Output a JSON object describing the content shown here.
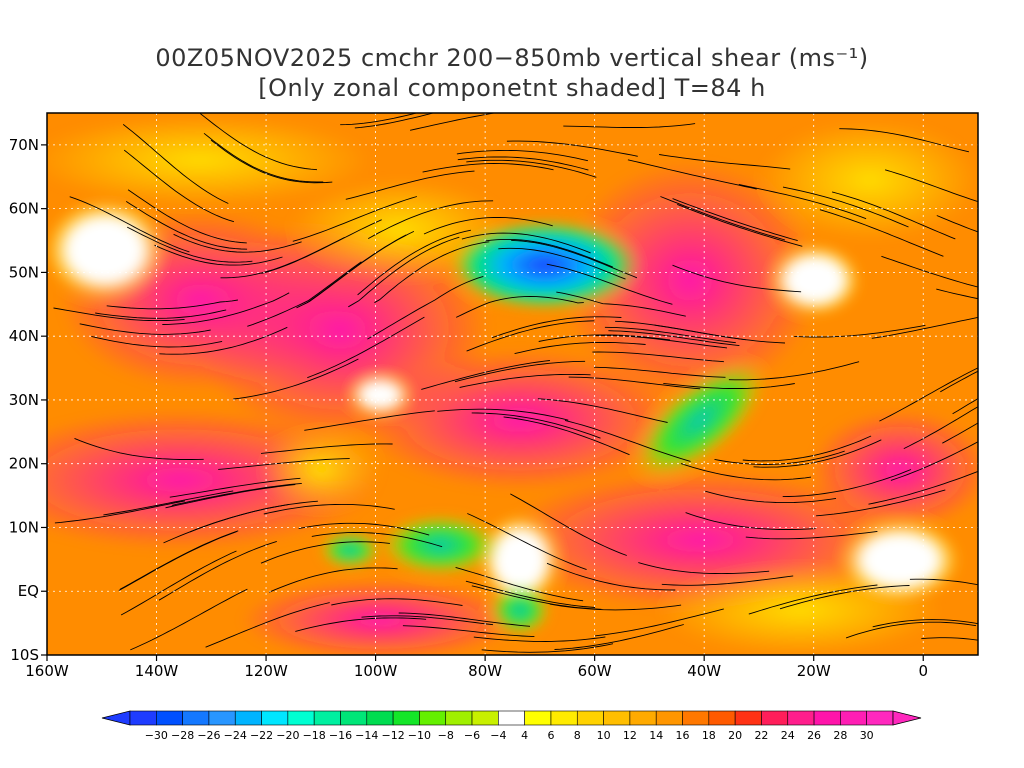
{
  "title": {
    "line1": "00Z05NOV2025 cmchr 200−850mb vertical shear (ms⁻¹)",
    "line2": "[Only zonal componetnt shaded] T=84 h"
  },
  "map": {
    "lon_range": [
      -160,
      10
    ],
    "lat_range": [
      -10,
      75
    ],
    "lat_ticks": [
      {
        "value": 70,
        "label": "70N"
      },
      {
        "value": 60,
        "label": "60N"
      },
      {
        "value": 50,
        "label": "50N"
      },
      {
        "value": 40,
        "label": "40N"
      },
      {
        "value": 30,
        "label": "30N"
      },
      {
        "value": 20,
        "label": "20N"
      },
      {
        "value": 10,
        "label": "10N"
      },
      {
        "value": 0,
        "label": "EQ"
      },
      {
        "value": -10,
        "label": "10S"
      }
    ],
    "lon_ticks": [
      {
        "value": -160,
        "label": "160W"
      },
      {
        "value": -140,
        "label": "140W"
      },
      {
        "value": -120,
        "label": "120W"
      },
      {
        "value": -100,
        "label": "100W"
      },
      {
        "value": -80,
        "label": "80W"
      },
      {
        "value": -60,
        "label": "60W"
      },
      {
        "value": -40,
        "label": "40W"
      },
      {
        "value": -20,
        "label": "20W"
      },
      {
        "value": 0,
        "label": "0"
      }
    ]
  },
  "colorbar": {
    "labels": [
      "−30",
      "−28",
      "−26",
      "−24",
      "−22",
      "−20",
      "−18",
      "−16",
      "−14",
      "−12",
      "−10",
      "−8",
      "−6",
      "−4",
      "4",
      "6",
      "8",
      "10",
      "12",
      "14",
      "16",
      "18",
      "20",
      "22",
      "24",
      "26",
      "28",
      "30"
    ],
    "colors": [
      "#1e3cff",
      "#0050ff",
      "#1478ff",
      "#2896ff",
      "#00b4ff",
      "#00e6ff",
      "#00ffd2",
      "#00f0a0",
      "#00e678",
      "#00dc50",
      "#14e628",
      "#64f000",
      "#a0f000",
      "#c8f000",
      "#ffffff",
      "#ffff00",
      "#ffeb00",
      "#ffd200",
      "#ffbe00",
      "#ffaa00",
      "#ff9600",
      "#ff7800",
      "#ff5a00",
      "#ff3214",
      "#ff1e5a",
      "#ff1e8c",
      "#ff14aa",
      "#ff1eb4",
      "#ff28be"
    ]
  }
}
